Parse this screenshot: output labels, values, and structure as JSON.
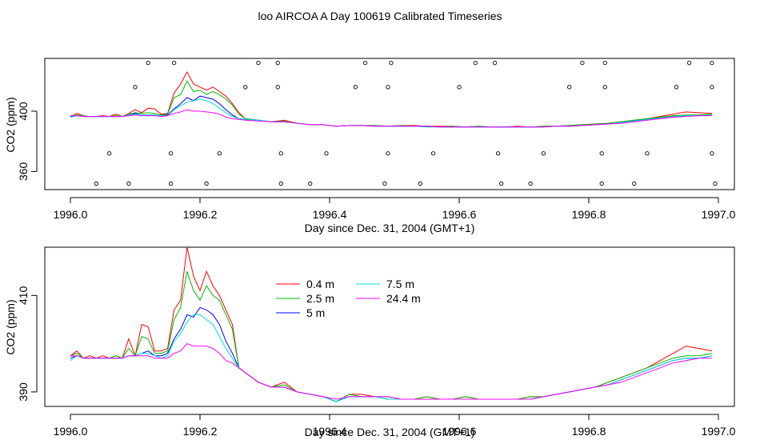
{
  "page": {
    "title": "loo AIRCOA A  Day 100619  Calibrated Timeseries"
  },
  "chart_data": [
    {
      "type": "scatter",
      "panel": "top",
      "xlabel": "Day since Dec. 31, 2004 (GMT+1)",
      "ylabel": "CO2 (ppm)",
      "xlim": [
        1996.0,
        1997.0
      ],
      "ylim": [
        348,
        435
      ],
      "x_ticks": [
        "1996.0",
        "1996.2",
        "1996.4",
        "1996.6",
        "1996.8",
        "1997.0"
      ],
      "y_ticks": [
        "360",
        "400"
      ],
      "grid": false,
      "series_colors": [
        "#ff0000",
        "#00bb00",
        "#0000ff",
        "#00dddd",
        "#ff00ff"
      ],
      "x": [
        1996.0,
        1996.01,
        1996.02,
        1996.03,
        1996.04,
        1996.05,
        1996.06,
        1996.07,
        1996.08,
        1996.09,
        1996.1,
        1996.11,
        1996.12,
        1996.13,
        1996.14,
        1996.15,
        1996.16,
        1996.17,
        1996.18,
        1996.19,
        1996.2,
        1996.21,
        1996.22,
        1996.23,
        1996.24,
        1996.25,
        1996.26,
        1996.27,
        1996.29,
        1996.31,
        1996.33,
        1996.35,
        1996.37,
        1996.39,
        1996.41,
        1996.43,
        1996.45,
        1996.47,
        1996.49,
        1996.51,
        1996.53,
        1996.55,
        1996.57,
        1996.59,
        1996.61,
        1996.63,
        1996.65,
        1996.67,
        1996.69,
        1996.71,
        1996.73,
        1996.75,
        1996.77,
        1996.79,
        1996.81,
        1996.83,
        1996.85,
        1996.87,
        1996.89,
        1996.91,
        1996.93,
        1996.95,
        1996.97,
        1996.99
      ],
      "series": [
        {
          "values": [
            396.5,
            398.5,
            397,
            396.5,
            396.5,
            397,
            396.5,
            398,
            396.5,
            398.5,
            401,
            399,
            402,
            401.5,
            398,
            398.5,
            412,
            418,
            426,
            418,
            416,
            414,
            416,
            413,
            410,
            405,
            399,
            395,
            394,
            393,
            394,
            392,
            391,
            391,
            390,
            390.5,
            390.5,
            390.5,
            390,
            390.5,
            390.5,
            390,
            390,
            390,
            389.5,
            390,
            389.5,
            389.5,
            390,
            389.5,
            390,
            390,
            390.5,
            391,
            391.5,
            392,
            393,
            394,
            395,
            396.5,
            398,
            399.5,
            399,
            398.5
          ]
        },
        {
          "values": [
            396.5,
            397.5,
            397,
            396.5,
            396.5,
            396.5,
            396.5,
            397,
            396.5,
            398,
            399,
            398.5,
            399,
            398.5,
            397.5,
            398,
            409,
            411,
            420,
            413,
            414,
            411,
            413,
            411,
            408,
            404,
            398,
            395,
            394,
            393,
            393.5,
            392,
            391,
            391,
            390,
            390.5,
            390.5,
            390.5,
            390,
            390.5,
            390,
            390,
            389.5,
            390,
            389.5,
            390,
            389.5,
            389.5,
            389.5,
            389.5,
            390,
            390,
            390.5,
            391,
            391.5,
            392,
            393,
            394,
            395,
            396,
            397,
            397.5,
            397.5,
            398
          ]
        },
        {
          "values": [
            396.5,
            397,
            396.5,
            396.5,
            396.5,
            396.5,
            396.5,
            396.5,
            396.5,
            397.5,
            398.5,
            397.5,
            397.5,
            397.5,
            397,
            397.5,
            401.5,
            405,
            409,
            407,
            410,
            409,
            408,
            405,
            401,
            397.5,
            395,
            394.5,
            394,
            393,
            393,
            392,
            391,
            391,
            390,
            390.5,
            390.5,
            390,
            390,
            390,
            390,
            390,
            389.5,
            389.5,
            389.5,
            389.5,
            389.5,
            389.5,
            389.5,
            389.5,
            389.5,
            390,
            390,
            390.5,
            391,
            391.5,
            392.5,
            393.5,
            394.5,
            395.5,
            396.5,
            397,
            397,
            397.5
          ]
        },
        {
          "values": [
            396,
            397,
            396.5,
            396.5,
            396.5,
            396.5,
            396.5,
            396.5,
            396.5,
            397.5,
            398,
            397.5,
            397.5,
            397.5,
            397,
            397,
            401,
            403.5,
            406,
            407,
            408,
            407,
            405,
            402,
            399,
            396.5,
            395,
            394.5,
            394,
            393,
            393,
            392,
            391,
            391,
            390,
            390.5,
            390.5,
            390,
            390,
            390,
            390,
            389.5,
            389.5,
            389.5,
            389.5,
            389.5,
            389.5,
            389.5,
            389.5,
            389.5,
            389.5,
            390,
            390,
            390.5,
            391,
            391.5,
            392.5,
            393.5,
            394.5,
            395.5,
            396.5,
            397,
            397,
            397.5
          ]
        },
        {
          "values": [
            397,
            397,
            396.5,
            396.5,
            396.5,
            396.5,
            396.5,
            396.5,
            396.5,
            397,
            397.5,
            397,
            397,
            397,
            396.5,
            397,
            398.5,
            399.5,
            401,
            400,
            400,
            399.5,
            399,
            398,
            396,
            395,
            394.5,
            394,
            393.5,
            393,
            393,
            392,
            391,
            391,
            390,
            390.5,
            390.5,
            390,
            390,
            390,
            390,
            390,
            389.5,
            389.5,
            389.5,
            389.5,
            389.5,
            389.5,
            389.5,
            389.5,
            389.5,
            390,
            390,
            390.5,
            391,
            391.5,
            392,
            393,
            394,
            395,
            396,
            396.5,
            397,
            397
          ]
        }
      ],
      "scatter_points": [
        [
          1996.04,
          352
        ],
        [
          1996.06,
          372
        ],
        [
          1996.09,
          352
        ],
        [
          1996.1,
          416
        ],
        [
          1996.12,
          432
        ],
        [
          1996.155,
          352
        ],
        [
          1996.155,
          372
        ],
        [
          1996.16,
          432
        ],
        [
          1996.21,
          352
        ],
        [
          1996.23,
          372
        ],
        [
          1996.27,
          416
        ],
        [
          1996.29,
          432
        ],
        [
          1996.32,
          432
        ],
        [
          1996.32,
          416
        ],
        [
          1996.325,
          372
        ],
        [
          1996.325,
          352
        ],
        [
          1996.37,
          352
        ],
        [
          1996.395,
          372
        ],
        [
          1996.44,
          416
        ],
        [
          1996.455,
          432
        ],
        [
          1996.485,
          352
        ],
        [
          1996.49,
          416
        ],
        [
          1996.49,
          372
        ],
        [
          1996.495,
          432
        ],
        [
          1996.54,
          352
        ],
        [
          1996.56,
          372
        ],
        [
          1996.6,
          416
        ],
        [
          1996.625,
          432
        ],
        [
          1996.655,
          432
        ],
        [
          1996.66,
          372
        ],
        [
          1996.665,
          352
        ],
        [
          1996.71,
          352
        ],
        [
          1996.73,
          372
        ],
        [
          1996.77,
          416
        ],
        [
          1996.79,
          432
        ],
        [
          1996.82,
          352
        ],
        [
          1996.82,
          372
        ],
        [
          1996.825,
          416
        ],
        [
          1996.825,
          432
        ],
        [
          1996.87,
          352
        ],
        [
          1996.89,
          372
        ],
        [
          1996.935,
          416
        ],
        [
          1996.955,
          432
        ],
        [
          1996.99,
          432
        ],
        [
          1996.99,
          416
        ],
        [
          1996.99,
          372
        ],
        [
          1996.995,
          352
        ]
      ]
    },
    {
      "type": "line",
      "panel": "bottom",
      "xlabel": "Day since Dec. 31, 2004 (GMT+1)",
      "ylabel": "CO2 (ppm)",
      "xlim": [
        1996.0,
        1997.0
      ],
      "ylim": [
        387,
        420
      ],
      "x_ticks": [
        "1996.0",
        "1996.2",
        "1996.4",
        "1996.6",
        "1996.8",
        "1997.0"
      ],
      "y_ticks": [
        "390",
        "410"
      ],
      "grid": false,
      "legend_position": "top-center",
      "x": [
        1996.0,
        1996.01,
        1996.02,
        1996.03,
        1996.04,
        1996.05,
        1996.06,
        1996.07,
        1996.08,
        1996.09,
        1996.1,
        1996.11,
        1996.12,
        1996.13,
        1996.14,
        1996.15,
        1996.16,
        1996.17,
        1996.18,
        1996.19,
        1996.2,
        1996.21,
        1996.22,
        1996.23,
        1996.24,
        1996.25,
        1996.26,
        1996.27,
        1996.29,
        1996.31,
        1996.33,
        1996.35,
        1996.37,
        1996.39,
        1996.41,
        1996.43,
        1996.45,
        1996.47,
        1996.49,
        1996.51,
        1996.53,
        1996.55,
        1996.57,
        1996.59,
        1996.61,
        1996.63,
        1996.65,
        1996.67,
        1996.69,
        1996.71,
        1996.73,
        1996.75,
        1996.77,
        1996.79,
        1996.81,
        1996.83,
        1996.85,
        1996.87,
        1996.89,
        1996.91,
        1996.93,
        1996.95,
        1996.97,
        1996.99
      ],
      "series": [
        {
          "name": "0.4 m",
          "color": "#ff0000",
          "values": [
            397.5,
            398.5,
            397,
            397.5,
            397,
            397.5,
            397,
            397.5,
            397,
            401,
            397.5,
            404,
            403.5,
            398.5,
            398.5,
            399,
            407,
            409,
            420,
            414,
            411,
            415,
            412,
            410,
            407,
            404,
            395,
            394,
            392,
            391,
            392,
            390,
            389.5,
            389,
            388,
            389.5,
            389.5,
            389,
            389,
            388.5,
            388.5,
            389,
            388.5,
            388.5,
            389,
            388.5,
            388.5,
            388.5,
            388.5,
            389,
            389,
            389.5,
            390,
            390.5,
            391,
            392,
            393,
            394,
            395,
            396.5,
            398,
            399.5,
            399,
            398.5
          ]
        },
        {
          "name": "2.5 m",
          "color": "#00bb00",
          "values": [
            397.5,
            398,
            397,
            397,
            397,
            397,
            397,
            397.5,
            397,
            399,
            397.5,
            401.5,
            401,
            398,
            398,
            398.5,
            405,
            407.5,
            415,
            411,
            409,
            412,
            410,
            409,
            406,
            403,
            395,
            394,
            392,
            391,
            391.5,
            390,
            389.5,
            389,
            388,
            389.5,
            389,
            389,
            389,
            388.5,
            388.5,
            389,
            388.5,
            388.5,
            389,
            388.5,
            388.5,
            388.5,
            388.5,
            389,
            389,
            389.5,
            390,
            390.5,
            391,
            392,
            393,
            394,
            395,
            396,
            397,
            397.5,
            397.5,
            398
          ]
        },
        {
          "name": "5 m",
          "color": "#0000ff",
          "values": [
            397,
            397.5,
            397,
            397,
            397,
            397,
            397,
            397,
            397,
            397.5,
            397.5,
            398,
            398.5,
            397.5,
            397.5,
            398,
            401,
            403,
            406,
            405.5,
            407.5,
            407,
            406,
            404,
            400.5,
            398,
            395,
            394,
            392,
            391,
            391,
            390,
            389.5,
            389,
            388,
            389,
            389,
            389,
            388.5,
            388.5,
            388.5,
            388.5,
            388.5,
            388.5,
            388.5,
            388.5,
            388.5,
            388.5,
            388.5,
            388.5,
            389,
            389.5,
            390,
            390.5,
            391,
            391.5,
            392.5,
            393.5,
            394.5,
            395.5,
            396.5,
            397,
            397,
            397.5
          ]
        },
        {
          "name": "7.5 m",
          "color": "#00dddd",
          "values": [
            396.5,
            397.5,
            397,
            397,
            397,
            397,
            397,
            397,
            397,
            397.5,
            397.5,
            398,
            398,
            397.5,
            397,
            397.5,
            400.5,
            402,
            404.5,
            406,
            406,
            405,
            404,
            401.5,
            399,
            397,
            395,
            394,
            392,
            391,
            391,
            390,
            389.5,
            389,
            388,
            389,
            389,
            389,
            388.5,
            388.5,
            388.5,
            388.5,
            388.5,
            388.5,
            388.5,
            388.5,
            388.5,
            388.5,
            388.5,
            388.5,
            389,
            389.5,
            390,
            390.5,
            391,
            391.5,
            392.5,
            393.5,
            394.5,
            395.5,
            396.5,
            397,
            397,
            397.5
          ]
        },
        {
          "name": "24.4 m",
          "color": "#ff00ff",
          "values": [
            397.5,
            397.5,
            397,
            397,
            397,
            397,
            397,
            397,
            397,
            397.5,
            397.5,
            397.5,
            397.5,
            397,
            397,
            397,
            398,
            398.5,
            400,
            399.5,
            399.5,
            399.5,
            399,
            398,
            396.5,
            396,
            395,
            394,
            392,
            391,
            391,
            390,
            389.5,
            389,
            388.5,
            389,
            389,
            389,
            389,
            388.5,
            388.5,
            388.5,
            388.5,
            388.5,
            388.5,
            388.5,
            388.5,
            388.5,
            388.5,
            388.5,
            389,
            389.5,
            390,
            390.5,
            391,
            391.5,
            392,
            393,
            394,
            395,
            396,
            396.5,
            397,
            397
          ]
        }
      ]
    }
  ]
}
